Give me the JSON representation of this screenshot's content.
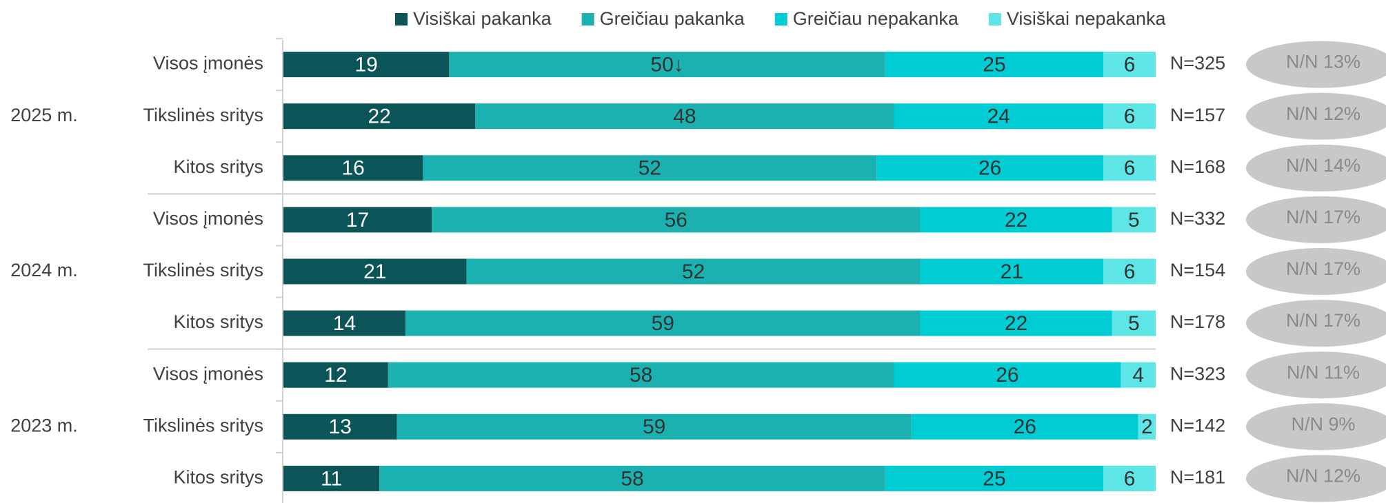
{
  "chart_data": {
    "type": "stacked-bar-horizontal",
    "categories": [
      "Visos įmonės",
      "Tikslinės sritys",
      "Kitos sritys",
      "Visos įmonės",
      "Tikslinės sritys",
      "Kitos sritys",
      "Visos įmonės",
      "Tikslinės sritys",
      "Kitos sritys"
    ],
    "groups": [
      "2025 m.",
      "2024 m.",
      "2023 m."
    ],
    "xlim": [
      0,
      100
    ],
    "series": [
      {
        "name": "Visiškai pakanka",
        "color": "#0b5458",
        "values": [
          19,
          22,
          16,
          17,
          21,
          14,
          12,
          13,
          11
        ]
      },
      {
        "name": "Greičiau pakanka",
        "color": "#1ab1b0",
        "values": [
          50,
          48,
          52,
          56,
          52,
          59,
          58,
          59,
          58
        ],
        "value_labels": [
          "50↓",
          "48",
          "52",
          "56",
          "52",
          "59",
          "58",
          "59",
          "58"
        ]
      },
      {
        "name": "Greičiau nepakanka",
        "color": "#00ccd3",
        "values": [
          25,
          24,
          26,
          22,
          21,
          22,
          26,
          26,
          25
        ]
      },
      {
        "name": "Visiškai nepakanka",
        "color": "#5ee5e6",
        "values": [
          6,
          6,
          6,
          5,
          6,
          5,
          4,
          2,
          6
        ]
      }
    ],
    "n_labels": [
      "N=325",
      "N=157",
      "N=168",
      "N=332",
      "N=154",
      "N=178",
      "N=323",
      "N=142",
      "N=181"
    ],
    "nn_labels": [
      "N/N 13%",
      "N/N 12%",
      "N/N 14%",
      "N/N 17%",
      "N/N 17%",
      "N/N 17%",
      "N/N 11%",
      "N/N 9%",
      "N/N 12%"
    ]
  }
}
